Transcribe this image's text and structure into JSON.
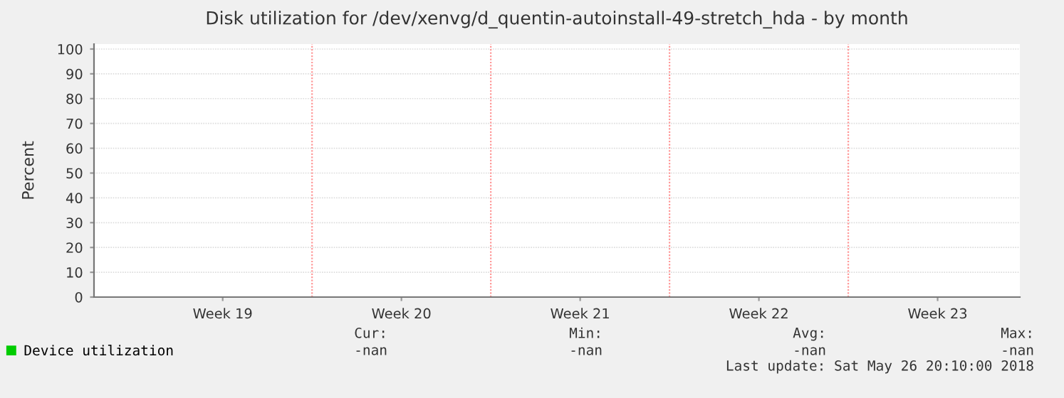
{
  "chart_data": {
    "type": "line",
    "title": "Disk utilization for /dev/xenvg/d_quentin-autoinstall-49-stretch_hda - by month",
    "ylabel": "Percent",
    "categories": [
      "Week 19",
      "Week 20",
      "Week 21",
      "Week 22",
      "Week 23"
    ],
    "ylim": [
      0,
      102
    ],
    "yticks": [
      0,
      10,
      20,
      30,
      40,
      50,
      60,
      70,
      80,
      90,
      100
    ],
    "grid": true,
    "legend": "bottom",
    "series": [
      {
        "name": "Device utilization",
        "color": "#00cc00",
        "values": [
          null,
          null,
          null,
          null,
          null
        ]
      }
    ],
    "annotations": [
      "Cur:",
      "Min:",
      "Avg:",
      "Max:",
      "-nan",
      "-nan",
      "-nan",
      "-nan",
      "Last update: Sat May 26 20:10:00 2018"
    ]
  }
}
